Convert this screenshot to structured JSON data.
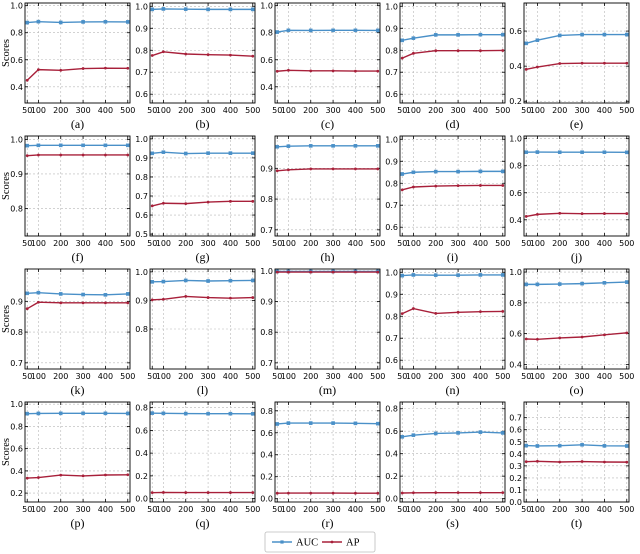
{
  "chart_data": {
    "type": "line",
    "x": [
      50,
      100,
      200,
      300,
      400,
      500
    ],
    "legend": {
      "placement": "bottom-center",
      "entries": [
        "AUC",
        "AP"
      ]
    },
    "series_colors": {
      "AUC": "#4a90c8",
      "AP": "#a8203a"
    },
    "grid": true,
    "ylabel": "Scores",
    "panels": [
      {
        "label": "(a)",
        "ylim": [
          0.28,
          1.02
        ],
        "yticks": [
          0.4,
          0.6,
          0.8,
          1.0
        ],
        "series": [
          {
            "name": "AUC",
            "values": [
              0.875,
              0.882,
              0.876,
              0.88,
              0.881,
              0.88
            ]
          },
          {
            "name": "AP",
            "values": [
              0.448,
              0.527,
              0.522,
              0.535,
              0.538,
              0.537
            ]
          }
        ]
      },
      {
        "label": "(b)",
        "ylim": [
          0.56,
          1.015
        ],
        "yticks": [
          0.6,
          0.7,
          0.8,
          0.9,
          1.0
        ],
        "series": [
          {
            "name": "AUC",
            "values": [
              0.986,
              0.988,
              0.987,
              0.986,
              0.986,
              0.986
            ]
          },
          {
            "name": "AP",
            "values": [
              0.776,
              0.793,
              0.783,
              0.78,
              0.778,
              0.773
            ]
          }
        ]
      },
      {
        "label": "(c)",
        "ylim": [
          0.28,
          1.02
        ],
        "yticks": [
          0.4,
          0.6,
          0.8,
          1.0
        ],
        "series": [
          {
            "name": "AUC",
            "values": [
              0.805,
              0.818,
              0.817,
              0.818,
              0.818,
              0.817
            ]
          },
          {
            "name": "AP",
            "values": [
              0.515,
              0.522,
              0.518,
              0.518,
              0.516,
              0.516
            ]
          }
        ]
      },
      {
        "label": "(d)",
        "ylim": [
          0.56,
          1.015
        ],
        "yticks": [
          0.6,
          0.7,
          0.8,
          0.9,
          1.0
        ],
        "series": [
          {
            "name": "AUC",
            "values": [
              0.845,
              0.855,
              0.87,
              0.87,
              0.871,
              0.871
            ]
          },
          {
            "name": "AP",
            "values": [
              0.764,
              0.786,
              0.798,
              0.798,
              0.798,
              0.799
            ]
          }
        ]
      },
      {
        "label": "(e)",
        "ylim": [
          0.19,
          0.76
        ],
        "yticks": [
          0.2,
          0.4,
          0.6
        ],
        "series": [
          {
            "name": "AUC",
            "values": [
              0.53,
              0.548,
              0.575,
              0.58,
              0.58,
              0.58
            ]
          },
          {
            "name": "AP",
            "values": [
              0.382,
              0.395,
              0.415,
              0.417,
              0.417,
              0.417
            ]
          }
        ]
      },
      {
        "label": "(f)",
        "ylim": [
          0.72,
          1.01
        ],
        "yticks": [
          0.8,
          0.9,
          1.0
        ],
        "series": [
          {
            "name": "AUC",
            "values": [
              0.982,
              0.983,
              0.983,
              0.983,
              0.983,
              0.983
            ]
          },
          {
            "name": "AP",
            "values": [
              0.953,
              0.955,
              0.955,
              0.955,
              0.955,
              0.955
            ]
          }
        ]
      },
      {
        "label": "(g)",
        "ylim": [
          0.49,
          1.015
        ],
        "yticks": [
          0.5,
          0.6,
          0.7,
          0.8,
          0.9,
          1.0
        ],
        "series": [
          {
            "name": "AUC",
            "values": [
              0.924,
              0.93,
              0.923,
              0.925,
              0.925,
              0.925
            ]
          },
          {
            "name": "AP",
            "values": [
              0.648,
              0.662,
              0.66,
              0.668,
              0.672,
              0.672
            ]
          }
        ]
      },
      {
        "label": "(h)",
        "ylim": [
          0.68,
          1.005
        ],
        "yticks": [
          0.7,
          0.8,
          0.9
        ],
        "series": [
          {
            "name": "AUC",
            "values": [
              0.97,
              0.972,
              0.973,
              0.973,
              0.973,
              0.973
            ]
          },
          {
            "name": "AP",
            "values": [
              0.892,
              0.895,
              0.898,
              0.898,
              0.898,
              0.898
            ]
          }
        ]
      },
      {
        "label": "(i)",
        "ylim": [
          0.56,
          1.015
        ],
        "yticks": [
          0.6,
          0.7,
          0.8,
          0.9,
          1.0
        ],
        "series": [
          {
            "name": "AUC",
            "values": [
              0.842,
              0.85,
              0.853,
              0.853,
              0.854,
              0.854
            ]
          },
          {
            "name": "AP",
            "values": [
              0.77,
              0.783,
              0.787,
              0.789,
              0.79,
              0.79
            ]
          }
        ]
      },
      {
        "label": "(j)",
        "ylim": [
          0.28,
          1.02
        ],
        "yticks": [
          0.4,
          0.6,
          0.8,
          1.0
        ],
        "series": [
          {
            "name": "AUC",
            "values": [
              0.9,
              0.901,
              0.9,
              0.9,
              0.9,
              0.899
            ]
          },
          {
            "name": "AP",
            "values": [
              0.425,
              0.44,
              0.448,
              0.445,
              0.446,
              0.446
            ]
          }
        ]
      },
      {
        "label": "(k)",
        "ylim": [
          0.68,
          1.005
        ],
        "yticks": [
          0.7,
          0.8,
          0.9
        ],
        "series": [
          {
            "name": "AUC",
            "values": [
              0.926,
              0.928,
              0.924,
              0.922,
              0.921,
              0.924
            ]
          },
          {
            "name": "AP",
            "values": [
              0.876,
              0.897,
              0.895,
              0.895,
              0.895,
              0.895
            ]
          }
        ]
      },
      {
        "label": "(l)",
        "ylim": [
          0.66,
          1.01
        ],
        "yticks": [
          0.8,
          0.9,
          1.0
        ],
        "series": [
          {
            "name": "AUC",
            "values": [
              0.965,
              0.966,
              0.97,
              0.968,
              0.969,
              0.97
            ]
          },
          {
            "name": "AP",
            "values": [
              0.902,
              0.904,
              0.914,
              0.91,
              0.908,
              0.91
            ]
          }
        ]
      },
      {
        "label": "(m)",
        "ylim": [
          0.68,
          1.006
        ],
        "yticks": [
          0.7,
          0.8,
          0.9,
          1.0
        ],
        "series": [
          {
            "name": "AUC",
            "values": [
              0.998,
              0.998,
              0.998,
              0.998,
              0.998,
              0.998
            ]
          },
          {
            "name": "AP",
            "values": [
              0.996,
              0.996,
              0.996,
              0.996,
              0.996,
              0.996
            ]
          }
        ]
      },
      {
        "label": "(n)",
        "ylim": [
          0.56,
          1.015
        ],
        "yticks": [
          0.6,
          0.7,
          0.8,
          0.9,
          1.0
        ],
        "series": [
          {
            "name": "AUC",
            "values": [
              0.985,
              0.988,
              0.987,
              0.987,
              0.988,
              0.988
            ]
          },
          {
            "name": "AP",
            "values": [
              0.812,
              0.835,
              0.813,
              0.818,
              0.821,
              0.822
            ]
          }
        ]
      },
      {
        "label": "(o)",
        "ylim": [
          0.37,
          1.02
        ],
        "yticks": [
          0.4,
          0.6,
          0.8,
          1.0
        ],
        "series": [
          {
            "name": "AUC",
            "values": [
              0.92,
              0.92,
              0.922,
              0.925,
              0.93,
              0.935
            ]
          },
          {
            "name": "AP",
            "values": [
              0.565,
              0.563,
              0.572,
              0.578,
              0.592,
              0.605
            ]
          }
        ]
      },
      {
        "label": "(p)",
        "ylim": [
          0.12,
          1.02
        ],
        "yticks": [
          0.2,
          0.4,
          0.6,
          0.8,
          1.0
        ],
        "series": [
          {
            "name": "AUC",
            "values": [
              0.915,
              0.917,
              0.918,
              0.918,
              0.918,
              0.917
            ]
          },
          {
            "name": "AP",
            "values": [
              0.335,
              0.34,
              0.362,
              0.355,
              0.363,
              0.365
            ]
          }
        ]
      },
      {
        "label": "(q)",
        "ylim": [
          -0.03,
          0.85
        ],
        "yticks": [
          0.0,
          0.2,
          0.4,
          0.6,
          0.8
        ],
        "series": [
          {
            "name": "AUC",
            "values": [
              0.752,
              0.75,
              0.748,
              0.747,
              0.747,
              0.746
            ]
          },
          {
            "name": "AP",
            "values": [
              0.052,
              0.054,
              0.053,
              0.053,
              0.053,
              0.053
            ]
          }
        ]
      },
      {
        "label": "(r)",
        "ylim": [
          -0.03,
          0.88
        ],
        "yticks": [
          0.0,
          0.2,
          0.4,
          0.6,
          0.8
        ],
        "series": [
          {
            "name": "AUC",
            "values": [
              0.68,
              0.688,
              0.688,
              0.688,
              0.686,
              0.683
            ]
          },
          {
            "name": "AP",
            "values": [
              0.05,
              0.051,
              0.051,
              0.051,
              0.05,
              0.05
            ]
          }
        ]
      },
      {
        "label": "(s)",
        "ylim": [
          -0.03,
          0.86
        ],
        "yticks": [
          0.0,
          0.2,
          0.4,
          0.6,
          0.8
        ],
        "series": [
          {
            "name": "AUC",
            "values": [
              0.55,
              0.565,
              0.58,
              0.585,
              0.592,
              0.585
            ]
          },
          {
            "name": "AP",
            "values": [
              0.05,
              0.052,
              0.053,
              0.053,
              0.053,
              0.053
            ]
          }
        ]
      },
      {
        "label": "(t)",
        "ylim": [
          0.0,
          0.83
        ],
        "yticks": [
          0.0,
          0.1,
          0.2,
          0.3,
          0.4,
          0.5,
          0.6,
          0.7
        ],
        "series": [
          {
            "name": "AUC",
            "values": [
              0.468,
              0.465,
              0.467,
              0.475,
              0.466,
              0.465
            ]
          },
          {
            "name": "AP",
            "values": [
              0.335,
              0.338,
              0.332,
              0.336,
              0.332,
              0.331
            ]
          }
        ]
      }
    ]
  }
}
